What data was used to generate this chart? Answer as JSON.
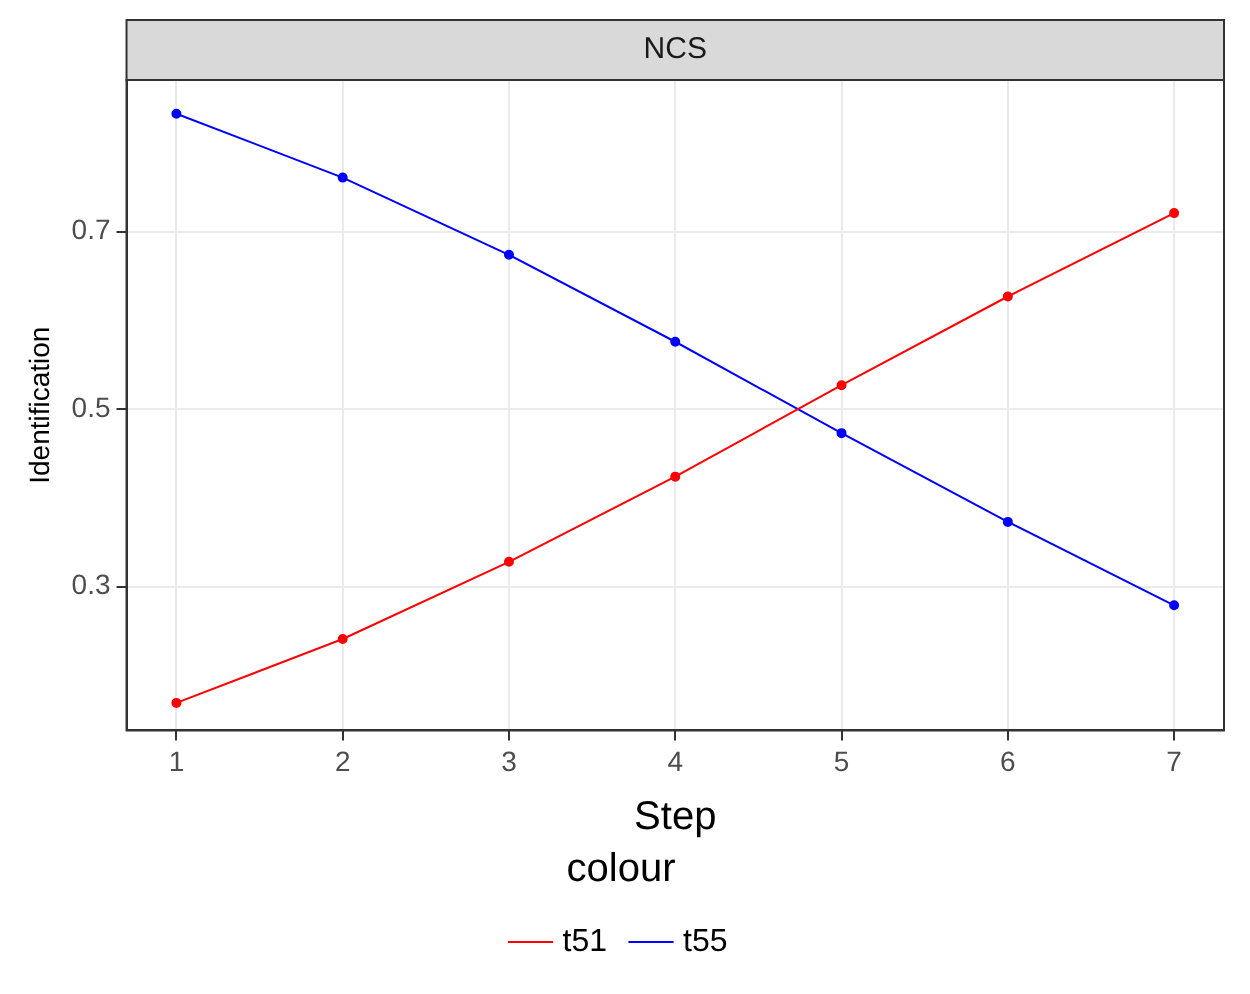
{
  "chart_data": {
    "type": "line",
    "title": "NCS",
    "xlabel": "Step",
    "ylabel": "Identification",
    "legend_title": "colour",
    "x": [
      1,
      2,
      3,
      4,
      5,
      6,
      7
    ],
    "series": [
      {
        "name": "t51",
        "color": "#ff0000",
        "values": [
          0.169,
          0.241,
          0.328,
          0.424,
          0.527,
          0.627,
          0.721
        ]
      },
      {
        "name": "t55",
        "color": "#0000ff",
        "values": [
          0.833,
          0.761,
          0.674,
          0.576,
          0.473,
          0.373,
          0.279
        ]
      }
    ],
    "xlim": [
      0.7,
      7.3
    ],
    "xticks": [
      1,
      2,
      3,
      4,
      5,
      6,
      7
    ],
    "ylim": [
      0.138,
      0.871
    ],
    "yticks": [
      0.3,
      0.5,
      0.7
    ],
    "grid": true,
    "legend": "bottom",
    "marker": "circle",
    "line_style": "solid"
  }
}
